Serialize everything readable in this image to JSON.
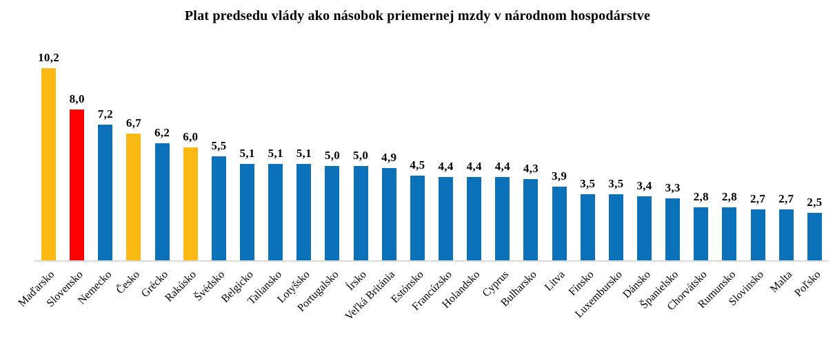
{
  "chart_data": {
    "type": "bar",
    "title": "Plat predsedu vlády ako násobok priemernej mzdy v národnom hospodárstve",
    "xlabel": "",
    "ylabel": "",
    "legend": "none",
    "grid": false,
    "ylim": [
      0,
      10.7
    ],
    "value_decimal_separator": ",",
    "categories": [
      "Maďarsko",
      "Slovensko",
      "Nemecko",
      "Česko",
      "Grécko",
      "Rakúsko",
      "Švédsko",
      "Belgicko",
      "Taliansko",
      "Lotyšsko",
      "Portugalsko",
      "Írsko",
      "Veľká Británia",
      "Estónsko",
      "Francúzsko",
      "Holandsko",
      "Cyprus",
      "Bulharsko",
      "Litva",
      "Fínsko",
      "Luxembursko",
      "Dánsko",
      "Španielsko",
      "Chorvátsko",
      "Rumunsko",
      "Slovinsko",
      "Malta",
      "Poľsko"
    ],
    "values": [
      10.2,
      8.0,
      7.2,
      6.7,
      6.2,
      6.0,
      5.5,
      5.1,
      5.1,
      5.1,
      5.0,
      5.0,
      4.9,
      4.5,
      4.4,
      4.4,
      4.4,
      4.3,
      3.9,
      3.5,
      3.5,
      3.4,
      3.3,
      2.8,
      2.8,
      2.7,
      2.7,
      2.5
    ],
    "value_labels": [
      "10,2",
      "8,0",
      "7,2",
      "6,7",
      "6,2",
      "6,0",
      "5,5",
      "5,1",
      "5,1",
      "5,1",
      "5,0",
      "5,0",
      "4,9",
      "4,5",
      "4,4",
      "4,4",
      "4,4",
      "4,3",
      "3,9",
      "3,5",
      "3,5",
      "3,4",
      "3,3",
      "2,8",
      "2,8",
      "2,7",
      "2,7",
      "2,5"
    ],
    "bar_color_keys": [
      "highlight",
      "slovakia",
      "default",
      "highlight",
      "default",
      "highlight",
      "default",
      "default",
      "default",
      "default",
      "default",
      "default",
      "default",
      "default",
      "default",
      "default",
      "default",
      "default",
      "default",
      "default",
      "default",
      "default",
      "default",
      "default",
      "default",
      "default",
      "default",
      "default"
    ],
    "colors": {
      "default": "#0B72B9",
      "highlight": "#FDB913",
      "slovakia": "#FE0000",
      "axis_line": "#DADADA",
      "text": "#000000"
    }
  }
}
